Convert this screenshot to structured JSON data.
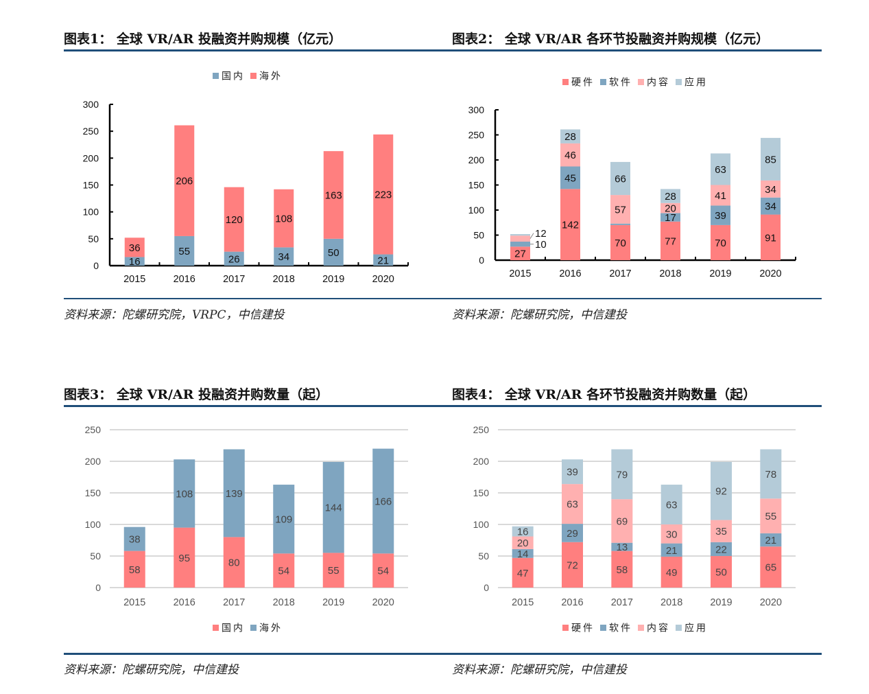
{
  "figures": [
    {
      "title": "图表1：  全球 VR/AR 投融资并购规模（亿元）",
      "source": "资料来源：陀螺研究院，VRPC，中信建投"
    },
    {
      "title": "图表2：  全球 VR/AR 各环节投融资并购规模（亿元）",
      "source": "资料来源：陀螺研究院，中信建投"
    },
    {
      "title": "图表3：  全球 VR/AR 投融资并购数量（起）",
      "source": "资料来源：陀螺研究院，中信建投"
    },
    {
      "title": "图表4：  全球 VR/AR 各环节投融资并购数量（起）",
      "source": "资料来源：陀螺研究院，中信建投"
    }
  ],
  "chart_data": [
    {
      "type": "bar",
      "stacked": true,
      "categories": [
        "2015",
        "2016",
        "2017",
        "2018",
        "2019",
        "2020"
      ],
      "series": [
        {
          "name": "国内",
          "color": "#7fa5c0",
          "values": [
            16,
            55,
            26,
            34,
            50,
            21
          ]
        },
        {
          "name": "海外",
          "color": "#ff7f7f",
          "values": [
            36,
            206,
            120,
            108,
            163,
            223
          ]
        }
      ],
      "ylim": [
        0,
        300
      ],
      "yticks": [
        0,
        50,
        100,
        150,
        200,
        250,
        300
      ],
      "grid": false,
      "legend": "top"
    },
    {
      "type": "bar",
      "stacked": true,
      "categories": [
        "2015",
        "2016",
        "2017",
        "2018",
        "2019",
        "2020"
      ],
      "series": [
        {
          "name": "硬件",
          "color": "#ff7f7f",
          "values": [
            27,
            142,
            70,
            77,
            70,
            91
          ]
        },
        {
          "name": "软件",
          "color": "#7fa5c0",
          "values": [
            10,
            45,
            3,
            17,
            39,
            34
          ]
        },
        {
          "name": "内容",
          "color": "#ffb0b0",
          "values": [
            12,
            46,
            57,
            20,
            41,
            34
          ]
        },
        {
          "name": "应用",
          "color": "#b4cbd8",
          "values": [
            3,
            28,
            66,
            28,
            63,
            85
          ]
        }
      ],
      "ylim": [
        0,
        300
      ],
      "yticks": [
        0,
        50,
        100,
        150,
        200,
        250,
        300
      ],
      "grid": false,
      "legend": "top"
    },
    {
      "type": "bar",
      "stacked": true,
      "categories": [
        "2015",
        "2016",
        "2017",
        "2018",
        "2019",
        "2020"
      ],
      "series": [
        {
          "name": "国内",
          "color": "#ff7f7f",
          "values": [
            58,
            95,
            80,
            54,
            55,
            54
          ]
        },
        {
          "name": "海外",
          "color": "#7fa5c0",
          "values": [
            38,
            108,
            139,
            109,
            144,
            166
          ]
        }
      ],
      "ylim": [
        0,
        250
      ],
      "yticks": [
        0,
        50,
        100,
        150,
        200,
        250
      ],
      "grid": true,
      "legend": "bottom"
    },
    {
      "type": "bar",
      "stacked": true,
      "categories": [
        "2015",
        "2016",
        "2017",
        "2018",
        "2019",
        "2020"
      ],
      "series": [
        {
          "name": "硬件",
          "color": "#ff7f7f",
          "values": [
            47,
            72,
            58,
            49,
            50,
            65
          ]
        },
        {
          "name": "软件",
          "color": "#7fa5c0",
          "values": [
            14,
            29,
            13,
            21,
            22,
            21
          ]
        },
        {
          "name": "内容",
          "color": "#ffb0b0",
          "values": [
            20,
            63,
            69,
            30,
            35,
            55
          ]
        },
        {
          "name": "应用",
          "color": "#b4cbd8",
          "values": [
            16,
            39,
            79,
            63,
            92,
            78
          ]
        }
      ],
      "ylim": [
        0,
        250
      ],
      "yticks": [
        0,
        50,
        100,
        150,
        200,
        250
      ],
      "grid": true,
      "legend": "bottom"
    }
  ]
}
